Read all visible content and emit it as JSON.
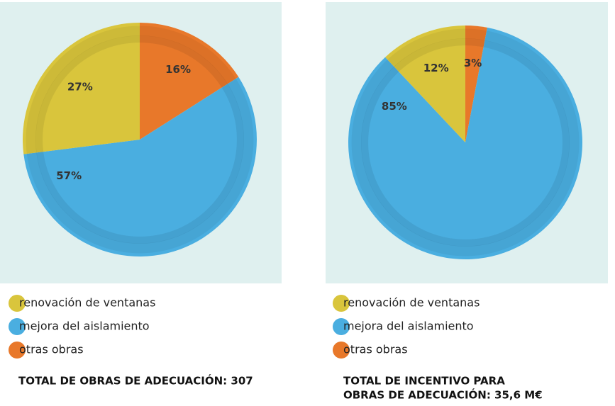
{
  "chart_data": [
    {
      "type": "pie",
      "categories": [
        "renovación de ventanas",
        "mejora del aislamiento",
        "otras obras"
      ],
      "values": [
        27,
        57,
        16
      ],
      "value_labels": [
        "27%",
        "57%",
        "16%"
      ],
      "colors": [
        "#d9c53c",
        "#4aaee0",
        "#e8782a"
      ],
      "note": [
        "TOTAL DE OBRAS DE ADECUACIÓN: 307"
      ]
    },
    {
      "type": "pie",
      "categories": [
        "renovación de ventanas",
        "mejora del aislamiento",
        "otras obras"
      ],
      "values": [
        12,
        85,
        3
      ],
      "value_labels": [
        "12%",
        "85%",
        "3%"
      ],
      "colors": [
        "#d9c53c",
        "#4aaee0",
        "#e8782a"
      ],
      "note": [
        "TOTAL DE INCENTIVO PARA",
        "OBRAS DE ADECUACIÓN: 35,6 M€"
      ]
    }
  ]
}
